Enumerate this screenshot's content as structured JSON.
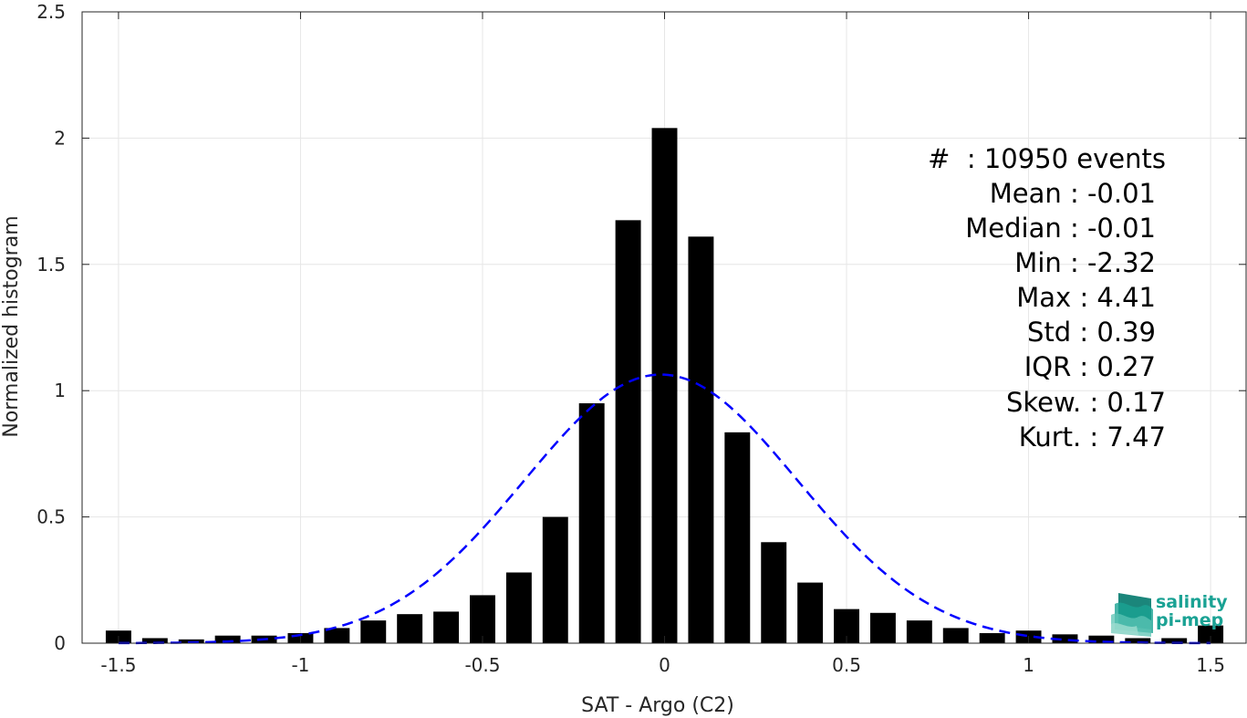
{
  "chart_data": {
    "type": "bar",
    "xlabel": "SAT - Argo (C2)",
    "ylabel": "Normalized histogram",
    "xlim": [
      -1.6,
      1.6
    ],
    "ylim": [
      0,
      2.5
    ],
    "grid": true,
    "x_ticks": [
      -1.5,
      -1,
      -0.5,
      0,
      0.5,
      1,
      1.5
    ],
    "x_tick_labels": [
      "-1.5",
      "-1",
      "-0.5",
      "0",
      "0.5",
      "1",
      "1.5"
    ],
    "y_ticks": [
      0,
      0.5,
      1,
      1.5,
      2,
      2.5
    ],
    "y_tick_labels": [
      "0",
      "0.5",
      "1",
      "1.5",
      "2",
      "2.5"
    ],
    "bar_width": 0.07,
    "bar_color": "#000000",
    "bins": [
      -1.5,
      -1.4,
      -1.3,
      -1.2,
      -1.1,
      -1.0,
      -0.9,
      -0.8,
      -0.7,
      -0.6,
      -0.5,
      -0.4,
      -0.3,
      -0.2,
      -0.1,
      0.0,
      0.1,
      0.2,
      0.3,
      0.4,
      0.5,
      0.6,
      0.7,
      0.8,
      0.9,
      1.0,
      1.1,
      1.2,
      1.3,
      1.4,
      1.5
    ],
    "values": [
      0.05,
      0.02,
      0.015,
      0.03,
      0.03,
      0.04,
      0.06,
      0.09,
      0.115,
      0.125,
      0.19,
      0.28,
      0.5,
      0.95,
      1.675,
      2.04,
      1.61,
      0.835,
      0.4,
      0.24,
      0.135,
      0.12,
      0.09,
      0.06,
      0.04,
      0.05,
      0.035,
      0.03,
      0.02,
      0.02,
      0.07
    ],
    "fit": {
      "name": "normal-fit",
      "mean": -0.01,
      "std": 0.375,
      "color": "#0000ff",
      "style": "dashed"
    },
    "annotations": {
      "events": "#  : 10950 events",
      "mean": "Mean : -0.01",
      "median": "Median : -0.01",
      "min": "Min : -2.32",
      "max": "Max : 4.41",
      "std": "Std : 0.39",
      "iqr": "IQR : 0.27",
      "skew": "Skew. : 0.17",
      "kurt": "Kurt. : 7.47"
    }
  },
  "logo": {
    "line1": "salinity",
    "line2": "pi-mep",
    "color": "#1aa294"
  }
}
